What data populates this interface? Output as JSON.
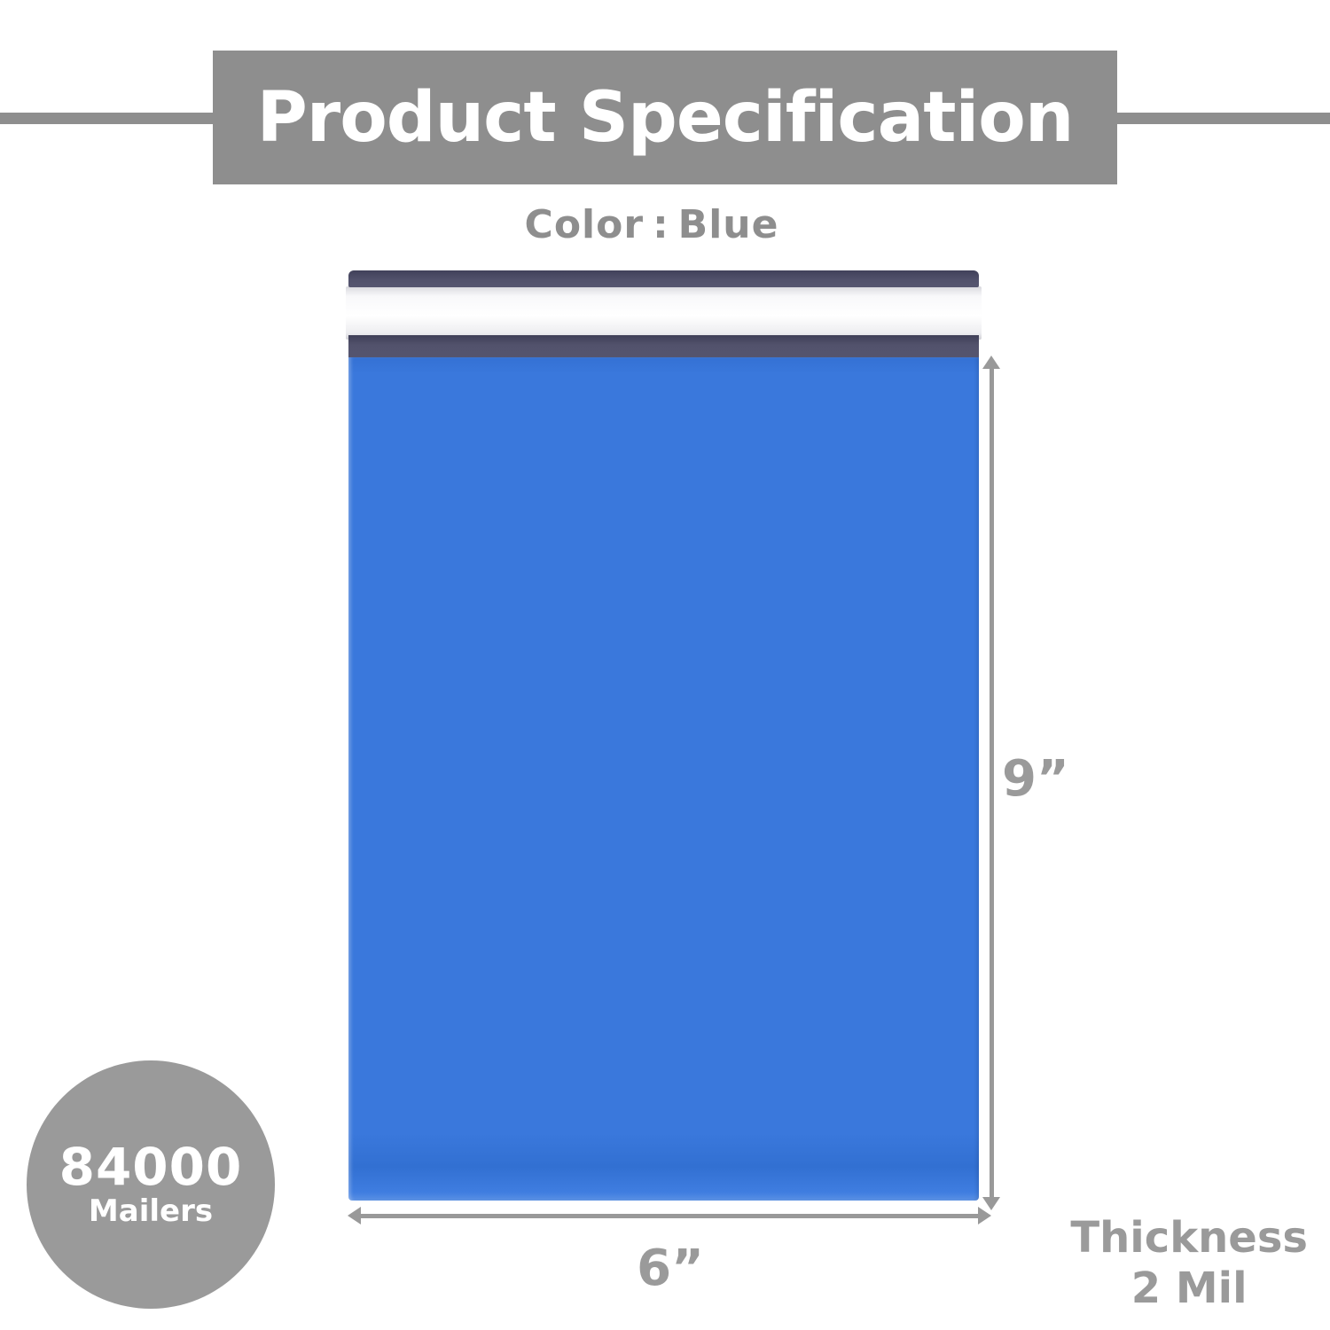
{
  "header": {
    "title": "Product Specification",
    "bar_color": "#8e8e8e",
    "text_color": "#ffffff"
  },
  "color_spec": {
    "label": "Color",
    "separator": ":",
    "value": "Blue"
  },
  "mailer": {
    "body_color": "#3a78dc",
    "flap_color": "#4d4d66",
    "seal_strip_color": "#f4f4f6"
  },
  "dimensions": {
    "height": "9”",
    "width": "6”",
    "arrow_color": "#999999"
  },
  "quantity_badge": {
    "count": "84000",
    "unit": "Mailers",
    "circle_color": "#9a9a9a"
  },
  "thickness": {
    "label": "Thickness",
    "value": "2 Mil"
  }
}
